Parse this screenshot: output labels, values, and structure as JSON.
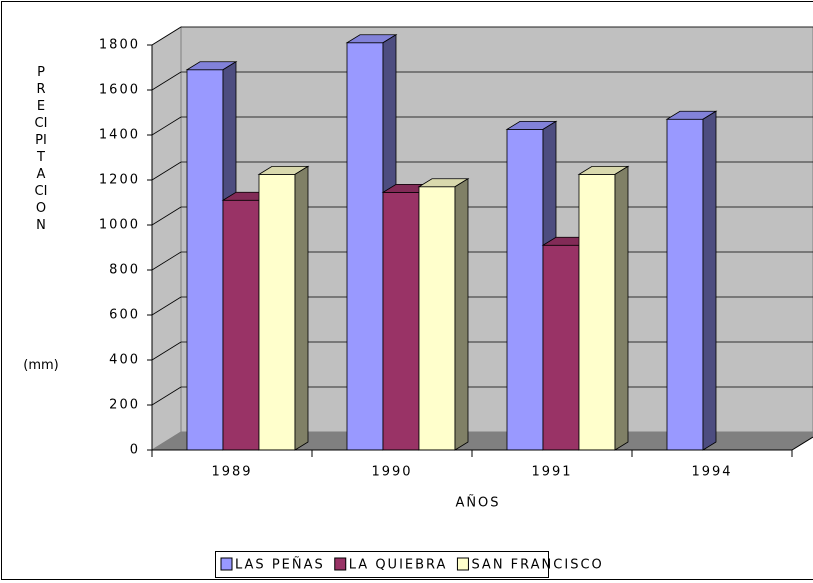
{
  "chart_data": {
    "type": "bar3d",
    "y_label": "PRECIPITACION",
    "y_label_unit": "(mm)",
    "x_label": "AÑOS",
    "categories": [
      "1989",
      "1990",
      "1991",
      "1994"
    ],
    "series": [
      {
        "name": "LAS PEÑAS",
        "color": "#9999ff",
        "values": [
          1690,
          1810,
          1425,
          1470
        ]
      },
      {
        "name": "LA QUIEBRA",
        "color": "#993366",
        "values": [
          1110,
          1145,
          910,
          null
        ]
      },
      {
        "name": "SAN FRANCISCO",
        "color": "#ffffcc",
        "values": [
          1225,
          1170,
          1225,
          null
        ]
      }
    ],
    "ylim": [
      0,
      1800
    ],
    "yticks": [
      0,
      200,
      400,
      600,
      800,
      1000,
      1200,
      1400,
      1600,
      1800
    ],
    "grid": true,
    "legend": "bottom"
  }
}
